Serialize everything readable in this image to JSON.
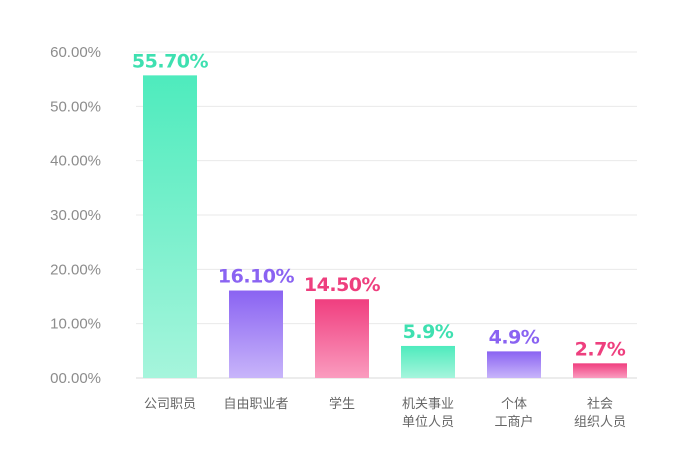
{
  "chart_data": {
    "type": "bar",
    "categories": [
      [
        "公司职员"
      ],
      [
        "自由职业者"
      ],
      [
        "学生"
      ],
      [
        "机关事业",
        "单位人员"
      ],
      [
        "个体",
        "工商户"
      ],
      [
        "社会",
        "组织人员"
      ]
    ],
    "values": [
      55.7,
      16.1,
      14.5,
      5.9,
      4.9,
      2.7
    ],
    "data_labels": [
      "55.70%",
      "16.10%",
      "14.50%",
      "5.9%",
      "4.9%",
      "2.7%"
    ],
    "y_ticks": [
      0,
      10,
      20,
      30,
      40,
      50,
      60
    ],
    "y_tick_labels": [
      "00.00%",
      "10.00%",
      "20.00%",
      "30.00%",
      "40.00%",
      "50.00%",
      "60.00%"
    ],
    "ylim": [
      0,
      60
    ],
    "grid": true,
    "colors": {
      "green": [
        "#4eebbd",
        "#a6f5dc"
      ],
      "purple": [
        "#8a63f2",
        "#c8b5fa"
      ],
      "pink": [
        "#f03e7f",
        "#fa9cbf"
      ]
    },
    "bar_colors": [
      "green",
      "purple",
      "pink",
      "green",
      "purple",
      "pink"
    ],
    "label_colors": [
      "#3ee0b0",
      "#8a63f2",
      "#ee3f7e",
      "#3ee0b0",
      "#8a63f2",
      "#ee3f7e"
    ]
  }
}
